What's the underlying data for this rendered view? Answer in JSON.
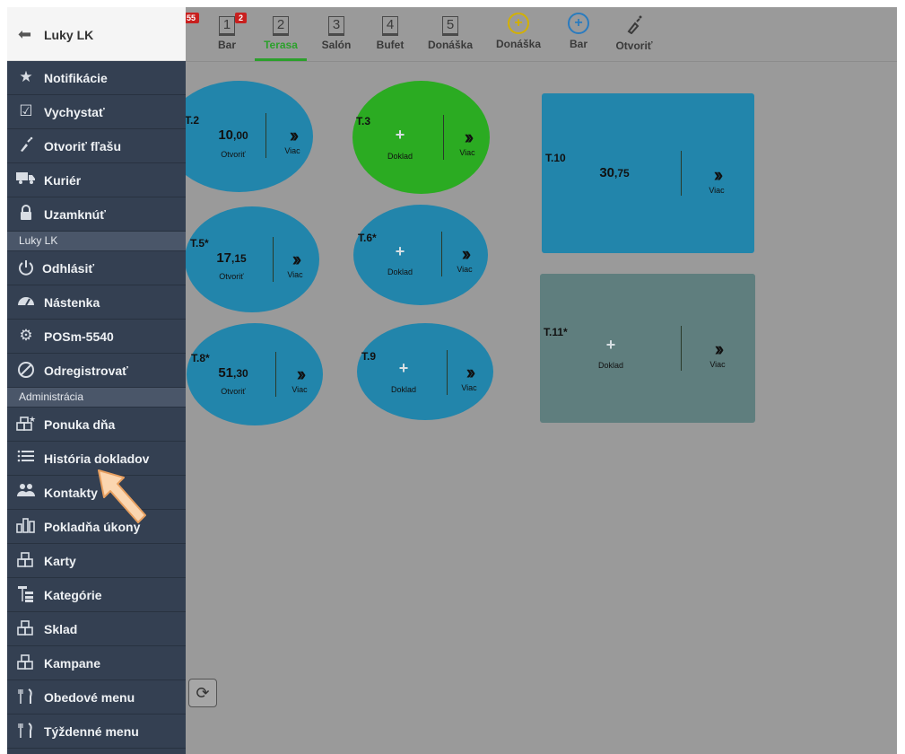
{
  "topbar": {
    "badges": {
      "partial": "55",
      "bar": "2"
    },
    "tabs": [
      {
        "num": "1",
        "label": "Bar"
      },
      {
        "num": "2",
        "label": "Terasa"
      },
      {
        "num": "3",
        "label": "Salón"
      },
      {
        "num": "4",
        "label": "Bufet"
      },
      {
        "num": "5",
        "label": "Donáška"
      }
    ],
    "actions": [
      {
        "icon": "plus-circle-yellow-icon",
        "label": "Donáška",
        "color": "#d4b000"
      },
      {
        "icon": "plus-circle-blue-icon",
        "label": "Bar",
        "color": "#2a7bc0"
      },
      {
        "icon": "open-bottle-icon",
        "label": "Otvoriť"
      }
    ],
    "active_tab": "Terasa"
  },
  "tables": [
    {
      "name": "T.2",
      "amount_main": "10",
      "amount_dec": ",00",
      "status": "Otvoriť",
      "more": "Viac"
    },
    {
      "name": "T.3",
      "status": "Doklad",
      "more": "Viac"
    },
    {
      "name": "T.10",
      "amount_main": "30",
      "amount_dec": ",75",
      "more": "Viac"
    },
    {
      "name": "T.5*",
      "amount_main": "17",
      "amount_dec": ",15",
      "status": "Otvoriť",
      "more": "Viac"
    },
    {
      "name": "T.6*",
      "status": "Doklad",
      "more": "Viac"
    },
    {
      "name": "T.11*",
      "status": "Doklad",
      "more": "Viac"
    },
    {
      "name": "T.8*",
      "amount_main": "51",
      "amount_dec": ",30",
      "status": "Otvoriť",
      "more": "Viac"
    },
    {
      "name": "T.9",
      "status": "Doklad",
      "more": "Viac"
    }
  ],
  "colors": {
    "table_blue": "#2285ab",
    "table_green": "#2bab22",
    "table_grey": "#5f7e7e",
    "sidebar_bg": "#344052",
    "active_green": "#2ca02c"
  },
  "sidebar": {
    "user": "Luky LK",
    "items_a": [
      {
        "label": "Notifikácie",
        "icon": "star-icon"
      },
      {
        "label": "Vychystať",
        "icon": "clipboard-check-icon"
      },
      {
        "label": "Otvoriť fľašu",
        "icon": "bottle-icon"
      },
      {
        "label": "Kuriér",
        "icon": "truck-icon"
      },
      {
        "label": "Uzamknúť",
        "icon": "lock-icon"
      }
    ],
    "section_user": "Luky LK",
    "items_b": [
      {
        "label": "Odhlásiť",
        "icon": "power-icon"
      },
      {
        "label": "Nástenka",
        "icon": "dashboard-icon"
      },
      {
        "label": "POSm-5540",
        "icon": "gear-icon"
      },
      {
        "label": "Odregistrovať",
        "icon": "ban-icon"
      }
    ],
    "section_admin": "Administrácia",
    "items_c": [
      {
        "label": "Ponuka dňa",
        "icon": "cubes-star-icon"
      },
      {
        "label": "História dokladov",
        "icon": "list-icon"
      },
      {
        "label": "Kontakty",
        "icon": "users-icon"
      },
      {
        "label": "Pokladňa úkony",
        "icon": "bar-chart-icon"
      },
      {
        "label": "Karty",
        "icon": "cubes-icon"
      },
      {
        "label": "Kategórie",
        "icon": "tree-icon"
      },
      {
        "label": "Sklad",
        "icon": "cubes-icon"
      },
      {
        "label": "Kampane",
        "icon": "cubes-icon"
      },
      {
        "label": "Obedové menu",
        "icon": "cutlery-icon"
      },
      {
        "label": "Týždenné menu",
        "icon": "cutlery-icon"
      }
    ]
  }
}
